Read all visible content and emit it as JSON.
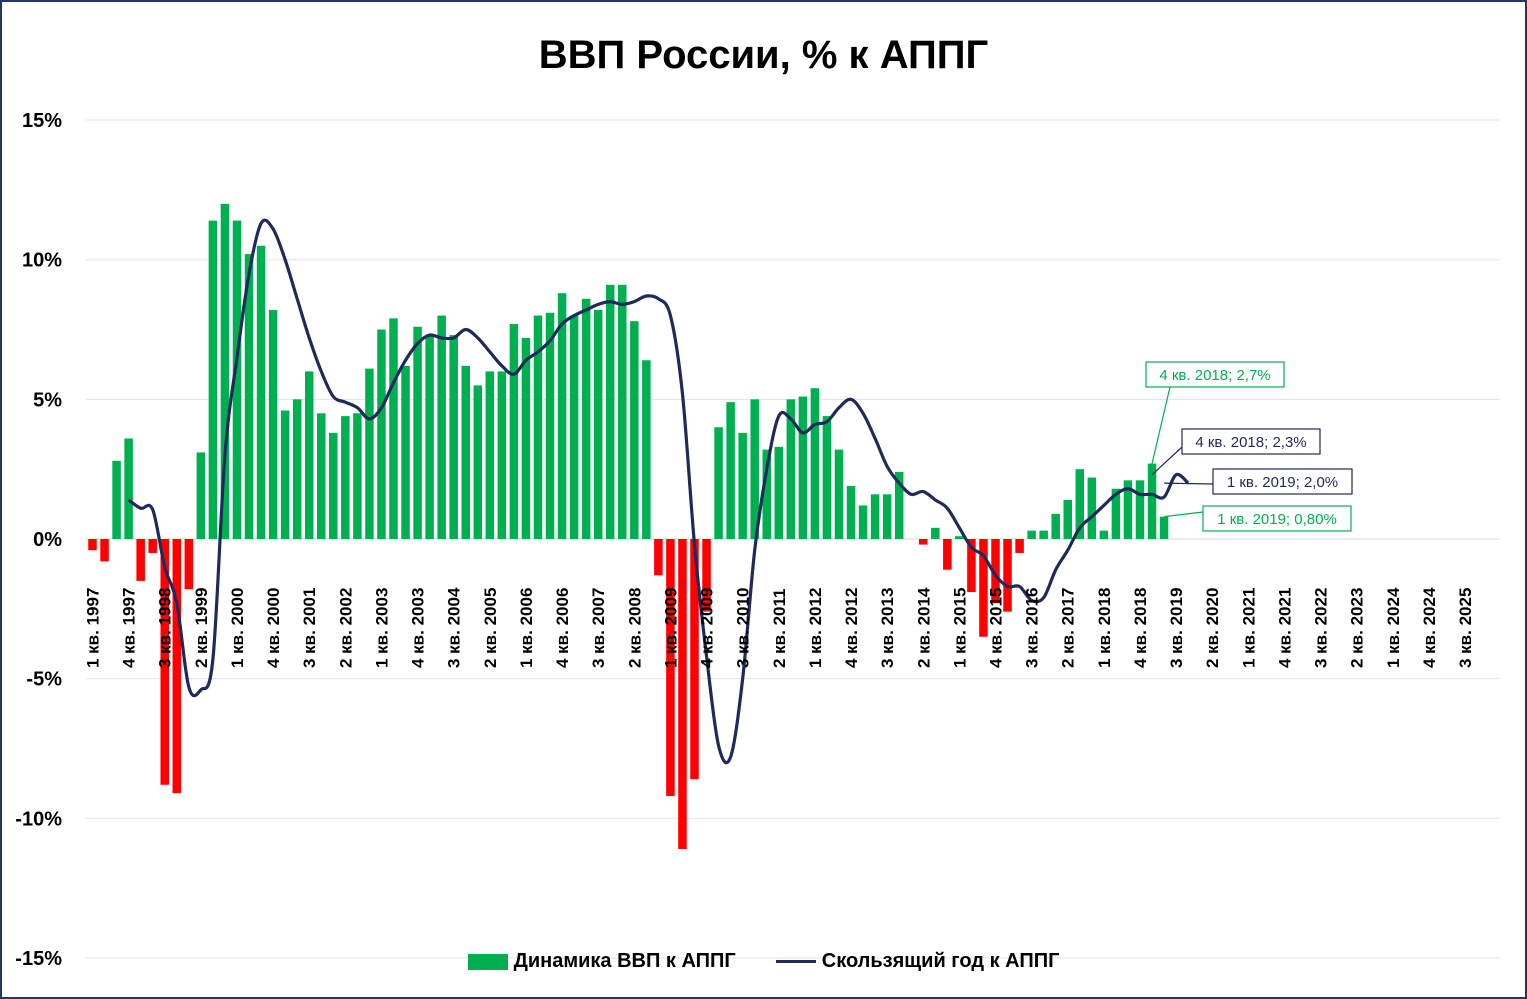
{
  "chart_data": {
    "type": "bar",
    "title": "ВВП России, % к АППГ",
    "ylim": [
      -15,
      15
    ],
    "y_ticks": [
      "15%",
      "10%",
      "5%",
      "0%",
      "-5%",
      "-10%",
      "-15%"
    ],
    "grid": true,
    "legend_position": "bottom",
    "colors": {
      "positive": "#00b050",
      "negative": "#ff0000",
      "line": "#1f2a5c",
      "frame": "#1f3864"
    },
    "x_tick_labels": [
      "1 кв. 1997",
      "4 кв. 1997",
      "3 кв. 1998",
      "2 кв. 1999",
      "1 кв. 2000",
      "4 кв. 2000",
      "3 кв. 2001",
      "2 кв. 2002",
      "1 кв. 2003",
      "4 кв. 2003",
      "3 кв. 2004",
      "2 кв. 2005",
      "1 кв. 2006",
      "4 кв. 2006",
      "3 кв. 2007",
      "2 кв. 2008",
      "1 кв. 2009",
      "4 кв. 2009",
      "3 кв. 2010",
      "2 кв. 2011",
      "1 кв. 2012",
      "4 кв. 2012",
      "3 кв. 2013",
      "2 кв. 2014",
      "1 кв. 2015",
      "4 кв. 2015",
      "3 кв. 2016",
      "2 кв. 2017",
      "1 кв. 2018",
      "4 кв. 2018",
      "3 кв. 2019",
      "2 кв. 2020",
      "1 кв. 2021",
      "4 кв. 2021",
      "3 кв. 2022",
      "2 кв. 2023",
      "1 кв. 2024",
      "4 кв. 2024",
      "3 кв. 2025"
    ],
    "series": [
      {
        "name": "Динамика ВВП к АППГ",
        "type": "bar",
        "values": [
          -0.4,
          -0.8,
          2.8,
          3.6,
          -1.5,
          -0.5,
          -8.8,
          -9.1,
          -1.8,
          3.1,
          11.4,
          12.0,
          11.4,
          10.2,
          10.5,
          8.2,
          4.6,
          5.0,
          6.0,
          4.5,
          3.8,
          4.4,
          4.5,
          6.1,
          7.5,
          7.9,
          6.2,
          7.6,
          7.3,
          8.0,
          7.3,
          6.2,
          5.5,
          6.0,
          6.0,
          7.7,
          7.2,
          8.0,
          8.1,
          8.8,
          8.0,
          8.6,
          8.2,
          9.1,
          9.1,
          7.8,
          6.4,
          -1.3,
          -9.2,
          -11.1,
          -8.6,
          -2.6,
          4.0,
          4.9,
          3.8,
          5.0,
          3.2,
          3.3,
          5.0,
          5.1,
          5.4,
          4.4,
          3.2,
          1.9,
          1.2,
          1.6,
          1.6,
          2.4,
          0.0,
          -0.2,
          0.4,
          -1.1,
          0.1,
          -1.9,
          -3.5,
          -2.3,
          -2.6,
          -0.5,
          0.3,
          0.3,
          0.9,
          1.4,
          2.5,
          2.2,
          0.3,
          1.8,
          2.1,
          2.1,
          2.7,
          0.8
        ]
      },
      {
        "name": "Скользящий год к АППГ",
        "type": "line",
        "start_index": 3,
        "values": [
          1.4,
          1.1,
          1.05,
          -1.0,
          -2.3,
          -5.3,
          -5.4,
          -4.3,
          3.0,
          6.5,
          9.5,
          11.3,
          11.1,
          10.0,
          8.6,
          7.2,
          6.0,
          5.1,
          4.9,
          4.7,
          4.3,
          4.7,
          5.6,
          6.4,
          7.0,
          7.3,
          7.2,
          7.2,
          7.5,
          7.2,
          6.7,
          6.2,
          5.9,
          6.4,
          6.7,
          7.1,
          7.7,
          8.0,
          8.2,
          8.4,
          8.5,
          8.4,
          8.5,
          8.7,
          8.6,
          8.0,
          5.2,
          -0.2,
          -4.2,
          -7.4,
          -7.8,
          -5.0,
          -0.4,
          2.5,
          4.4,
          4.3,
          3.8,
          4.1,
          4.2,
          4.7,
          5.0,
          4.5,
          3.6,
          2.6,
          2.0,
          1.6,
          1.7,
          1.4,
          1.1,
          0.4,
          -0.3,
          -0.6,
          -1.3,
          -1.7,
          -1.7,
          -2.2,
          -2.1,
          -1.1,
          -0.4,
          0.4,
          0.8,
          1.2,
          1.6,
          1.8,
          1.6,
          1.6,
          1.5,
          2.3,
          2.0
        ]
      }
    ],
    "annotations": [
      {
        "text": "4 кв. 2018; 2,7%",
        "color": "#00b050"
      },
      {
        "text": "4 кв. 2018; 2,3%",
        "color": "#1f2a5c"
      },
      {
        "text": "1 кв. 2019; 2,0%",
        "color": "#1f2a5c"
      },
      {
        "text": "1 кв. 2019; 0,80%",
        "color": "#00b050"
      }
    ]
  }
}
